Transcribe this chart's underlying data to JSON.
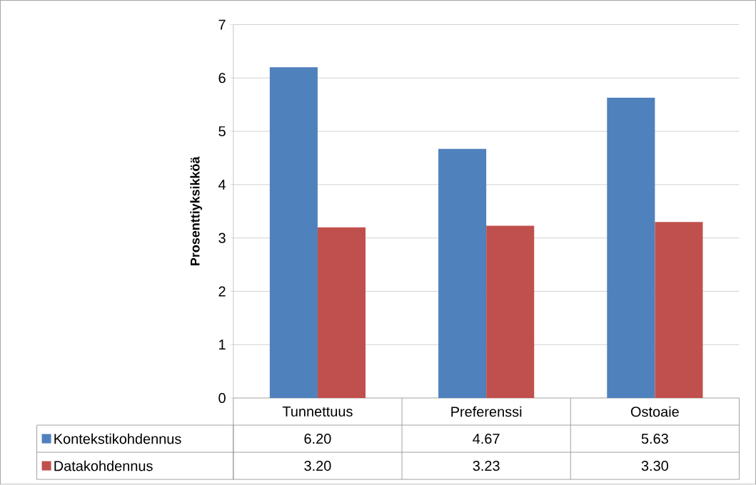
{
  "chart_data": {
    "type": "bar",
    "ylabel": "Prosenttiyksikköä",
    "categories": [
      "Tunnettuus",
      "Preferenssi",
      "Ostoaie"
    ],
    "series": [
      {
        "name": "Kontekstikohdennus",
        "color": "#4f81bd",
        "values": [
          6.2,
          4.67,
          5.63
        ],
        "value_labels": [
          "6.20",
          "4.67",
          "5.63"
        ]
      },
      {
        "name": "Datakohdennus",
        "color": "#c0504d",
        "values": [
          3.2,
          3.23,
          3.3
        ],
        "value_labels": [
          "3.20",
          "3.23",
          "3.30"
        ]
      }
    ],
    "ylim": [
      0,
      7
    ],
    "yticks": [
      0,
      1,
      2,
      3,
      4,
      5,
      6,
      7
    ],
    "grid": "y",
    "legend": "bottom left"
  }
}
